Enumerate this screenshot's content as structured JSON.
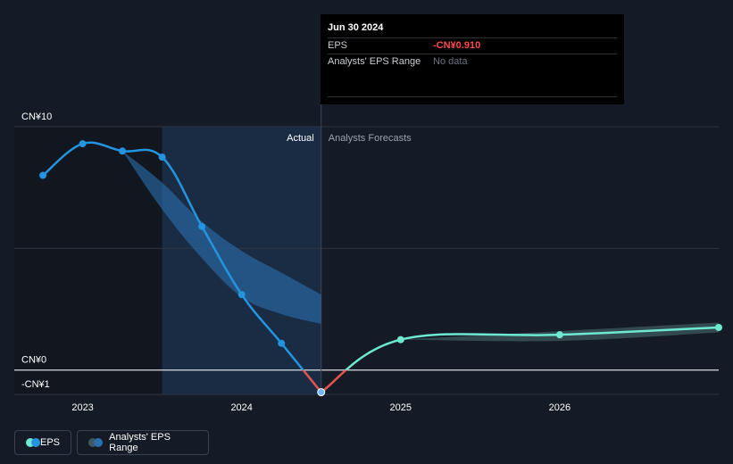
{
  "chart_data": {
    "type": "line",
    "y_axis_labels": [
      {
        "value": 10,
        "label": "CN¥10"
      },
      {
        "value": 0,
        "label": "CN¥0"
      },
      {
        "value": -1,
        "label": "-CN¥1"
      }
    ],
    "ylim": [
      -1,
      10
    ],
    "x_ticks": [
      {
        "value": 2023.0,
        "label": "2023"
      },
      {
        "value": 2024.0,
        "label": "2024"
      },
      {
        "value": 2025.0,
        "label": "2025"
      },
      {
        "value": 2026.0,
        "label": "2026"
      }
    ],
    "xlim": [
      2022.57,
      2027.0
    ],
    "region_labels": {
      "actual": "Actual",
      "forecast": "Analysts Forecasts"
    },
    "split_x": 2024.5,
    "highlight_start_x": 2023.5,
    "series": [
      {
        "name": "EPS",
        "kind": "actual",
        "points": [
          {
            "x": 2022.75,
            "y": 8.0
          },
          {
            "x": 2023.0,
            "y": 9.3
          },
          {
            "x": 2023.25,
            "y": 9.0
          },
          {
            "x": 2023.5,
            "y": 8.75
          },
          {
            "x": 2023.75,
            "y": 5.9
          },
          {
            "x": 2024.0,
            "y": 3.1
          },
          {
            "x": 2024.25,
            "y": 1.1
          },
          {
            "x": 2024.5,
            "y": -0.91
          }
        ]
      },
      {
        "name": "EPS",
        "kind": "forecast",
        "points": [
          {
            "x": 2024.5,
            "y": -0.91
          },
          {
            "x": 2025.0,
            "y": 1.25
          },
          {
            "x": 2026.0,
            "y": 1.45
          },
          {
            "x": 2027.0,
            "y": 1.75
          }
        ]
      }
    ],
    "past_range": {
      "upper": [
        {
          "x": 2023.25,
          "y": 9.0
        },
        {
          "x": 2023.5,
          "y": 7.7
        },
        {
          "x": 2023.75,
          "y": 6.1
        },
        {
          "x": 2024.0,
          "y": 4.9
        },
        {
          "x": 2024.25,
          "y": 4.0
        },
        {
          "x": 2024.5,
          "y": 3.1
        }
      ],
      "lower": [
        {
          "x": 2023.25,
          "y": 9.0
        },
        {
          "x": 2023.5,
          "y": 6.6
        },
        {
          "x": 2023.75,
          "y": 4.6
        },
        {
          "x": 2024.0,
          "y": 3.0
        },
        {
          "x": 2024.25,
          "y": 2.3
        },
        {
          "x": 2024.5,
          "y": 1.9
        }
      ]
    },
    "forecast_range": {
      "upper": [
        {
          "x": 2025.0,
          "y": 1.25
        },
        {
          "x": 2026.0,
          "y": 1.6
        },
        {
          "x": 2027.0,
          "y": 1.95
        }
      ],
      "lower": [
        {
          "x": 2025.0,
          "y": 1.25
        },
        {
          "x": 2026.0,
          "y": 1.2
        },
        {
          "x": 2027.0,
          "y": 1.55
        }
      ]
    },
    "colors": {
      "actual_line": "#2394df",
      "negative_line": "#e4534f",
      "forecast_line": "#6ee8d1",
      "past_band": "#2a6fae",
      "forecast_band": "#3c5a5e",
      "highlight": "#1b2f48",
      "pre_area": "#12161f",
      "grid": "#2e3440",
      "zero_line": "#d9dde3"
    }
  },
  "tooltip": {
    "date": "Jun 30 2024",
    "rows": [
      {
        "key": "EPS",
        "value": "-CN¥0.910"
      },
      {
        "key": "Analysts' EPS Range",
        "value": "No data"
      }
    ]
  },
  "legend": {
    "eps_label": "EPS",
    "range_label": "Analysts' EPS Range"
  }
}
